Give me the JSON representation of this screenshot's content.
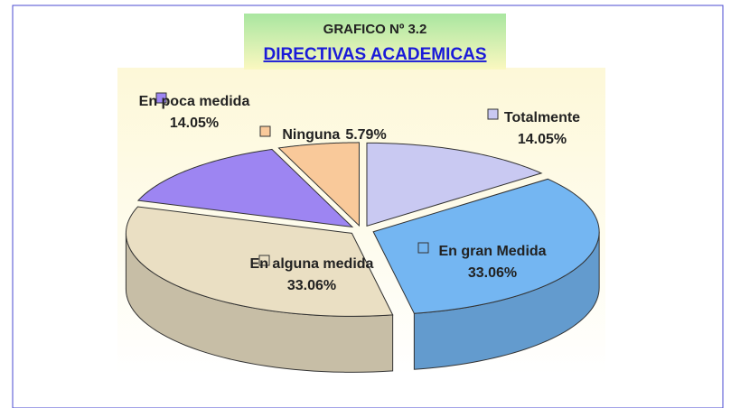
{
  "chart_data": {
    "type": "pie",
    "title": "GRAFICO Nº 3.2",
    "subtitle": "DIRECTIVAS ACADEMICAS",
    "categories": [
      "Totalmente",
      "En gran Medida",
      "En alguna medida",
      "En poca medida",
      "Ninguna"
    ],
    "values": [
      14.05,
      33.06,
      33.06,
      14.05,
      5.79
    ],
    "value_labels": [
      "14.05%",
      "33.06%",
      "33.06%",
      "14.05%",
      "5.79%"
    ],
    "colors": [
      "#c9c9f2",
      "#74b6f2",
      "#eadfc3",
      "#9d85f2",
      "#f9c99a"
    ]
  }
}
